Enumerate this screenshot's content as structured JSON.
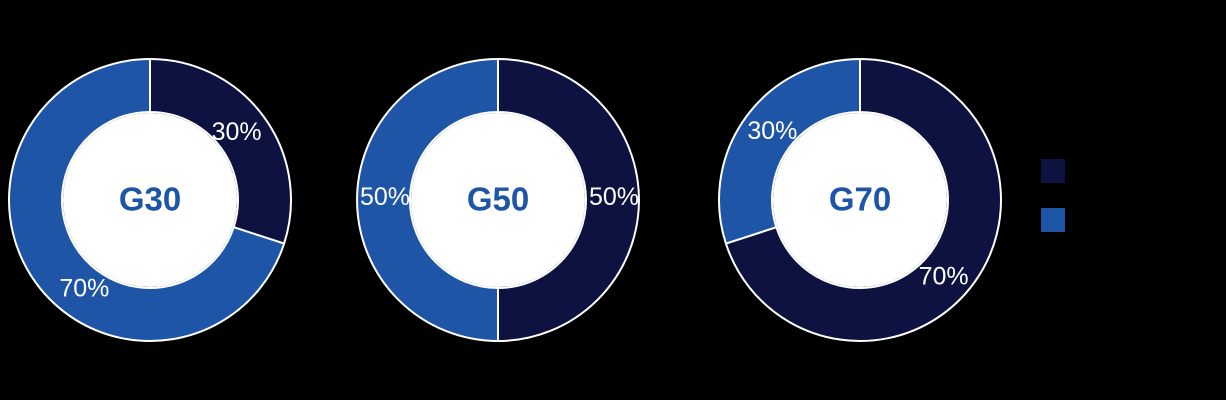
{
  "background": "#000000",
  "chart_data": [
    {
      "type": "pie",
      "subtype": "donut",
      "center_label": "G30",
      "start_angle_deg": 0,
      "direction": "clockwise",
      "slices": [
        {
          "label": "30%",
          "value": 30,
          "color": "#0d1240"
        },
        {
          "label": "70%",
          "value": 70,
          "color": "#1e55a6"
        }
      ]
    },
    {
      "type": "pie",
      "subtype": "donut",
      "center_label": "G50",
      "start_angle_deg": 0,
      "direction": "clockwise",
      "slices": [
        {
          "label": "50%",
          "value": 50,
          "color": "#0d1240"
        },
        {
          "label": "50%",
          "value": 50,
          "color": "#1e55a6"
        }
      ]
    },
    {
      "type": "pie",
      "subtype": "donut",
      "center_label": "G70",
      "start_angle_deg": 0,
      "direction": "clockwise",
      "slices": [
        {
          "label": "70%",
          "value": 70,
          "color": "#0d1240"
        },
        {
          "label": "30%",
          "value": 30,
          "color": "#1e55a6"
        }
      ]
    }
  ],
  "legend": {
    "position": "right",
    "swatches": [
      {
        "name": "dark-navy-series",
        "color": "#0d1240"
      },
      {
        "name": "blue-series",
        "color": "#1e55a6"
      }
    ]
  },
  "styles": {
    "slice_stroke": "#ffffff",
    "hole_fill": "#ffffff",
    "data_label_color": "#ffffff",
    "center_label_color": "#1d55a8"
  }
}
